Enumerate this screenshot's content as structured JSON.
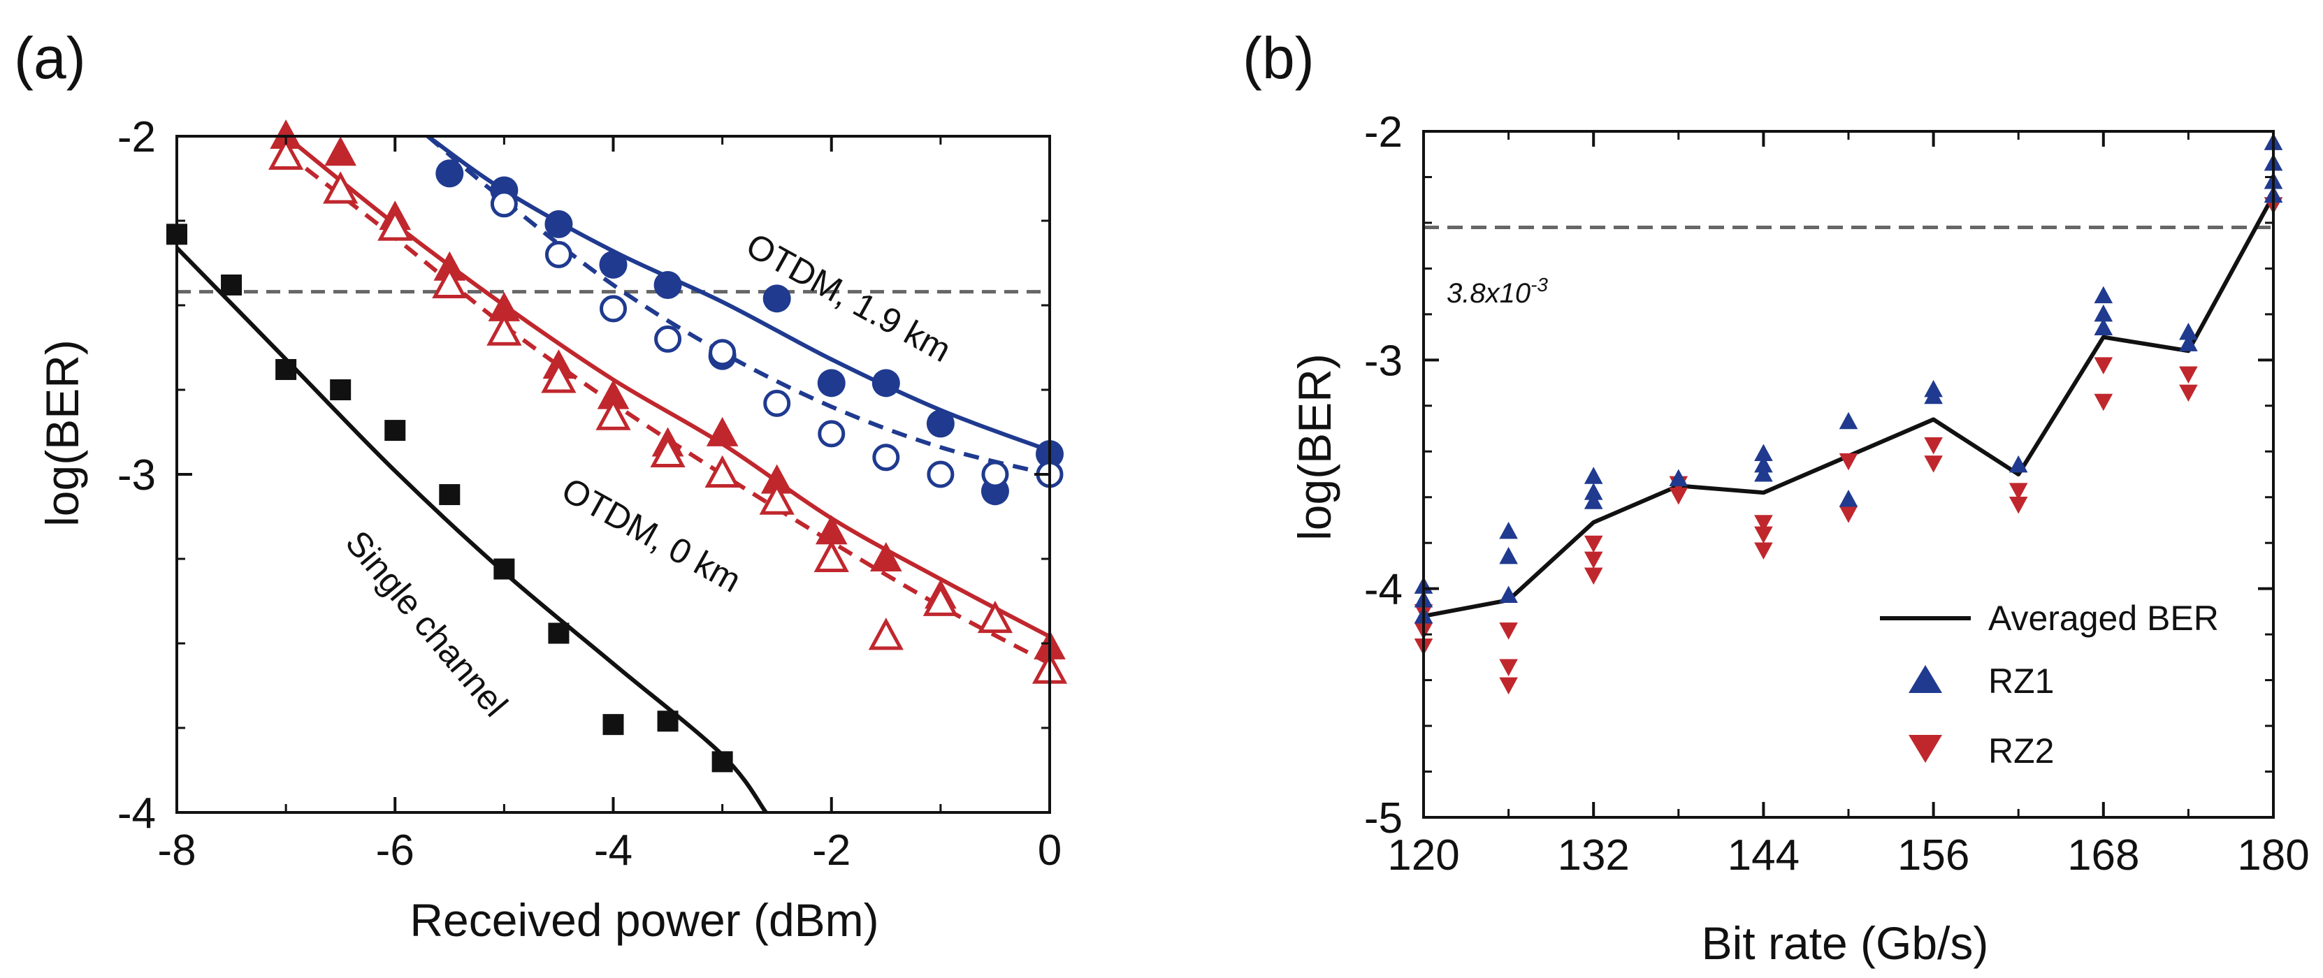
{
  "chart_data": [
    {
      "panel_label": "(a)",
      "type": "scatter",
      "xlabel": "Received power (dBm)",
      "ylabel": "log(BER)",
      "xlim": [
        -8,
        0
      ],
      "ylim": [
        -4,
        -2
      ],
      "xticks": [
        -8,
        -6,
        -4,
        -2,
        0
      ],
      "yticks": [
        -4,
        -3,
        -2
      ],
      "xtick_labels": [
        "-8",
        "-6",
        "-4",
        "-2",
        "0"
      ],
      "ytick_labels": [
        "-4",
        "-3",
        "-2"
      ],
      "threshold_logber": -2.46,
      "colors": {
        "red": "#c0272d",
        "blue": "#1f3a8f",
        "black": "#111111"
      },
      "annotations": [
        "OTDM, 1.9 km",
        "OTDM, 0 km",
        "Single channel"
      ],
      "series": [
        {
          "name": "Single channel",
          "marker": "filled-square",
          "color": "#111111",
          "x": [
            -8,
            -7.5,
            -7,
            -6.5,
            -6,
            -5.5,
            -5,
            -4.5,
            -4,
            -3.5,
            -3
          ],
          "y": [
            -2.29,
            -2.44,
            -2.69,
            -2.75,
            -2.87,
            -3.06,
            -3.28,
            -3.47,
            -3.74,
            -3.73,
            -3.85
          ],
          "fit": {
            "x": [
              -8,
              -7,
              -6,
              -5,
              -4,
              -3,
              -2.6
            ],
            "y": [
              -2.33,
              -2.66,
              -2.99,
              -3.29,
              -3.56,
              -3.83,
              -4.0
            ]
          }
        },
        {
          "name": "OTDM, 0 km (filled)",
          "marker": "filled-triangle-up",
          "color": "#c0272d",
          "x": [
            -7,
            -6.5,
            -6,
            -5.5,
            -5,
            -4.5,
            -4,
            -3.5,
            -3,
            -2.5,
            -2,
            -1.5,
            -1,
            -0.5,
            0
          ],
          "y": [
            -2.0,
            -2.05,
            -2.24,
            -2.39,
            -2.51,
            -2.68,
            -2.77,
            -2.91,
            -2.88,
            -3.02,
            -3.17,
            -3.25,
            -3.36,
            -3.43,
            -3.51
          ],
          "fit": {
            "x": [
              -7,
              -6,
              -5,
              -4,
              -3,
              -2,
              -1,
              0
            ],
            "y": [
              -2.0,
              -2.26,
              -2.5,
              -2.72,
              -2.91,
              -3.13,
              -3.31,
              -3.48
            ]
          }
        },
        {
          "name": "OTDM, 0 km (open)",
          "marker": "open-triangle-up",
          "color": "#c0272d",
          "x": [
            -7,
            -6.5,
            -6,
            -5.5,
            -5,
            -4.5,
            -4,
            -3.5,
            -3,
            -2.5,
            -2,
            -1.5,
            -1,
            -0.5,
            0
          ],
          "y": [
            -2.06,
            -2.16,
            -2.27,
            -2.44,
            -2.58,
            -2.72,
            -2.83,
            -2.94,
            -3.0,
            -3.08,
            -3.25,
            -3.48,
            -3.38,
            -3.43,
            -3.58
          ],
          "fit": {
            "x": [
              -7,
              -6,
              -5,
              -4,
              -3,
              -2,
              -1,
              0
            ],
            "y": [
              -2.05,
              -2.3,
              -2.56,
              -2.79,
              -3.0,
              -3.2,
              -3.39,
              -3.56
            ]
          }
        },
        {
          "name": "OTDM, 1.9 km (filled)",
          "marker": "filled-circle",
          "color": "#1f3a8f",
          "x": [
            -5.5,
            -5,
            -4.5,
            -4,
            -3.5,
            -3,
            -2.5,
            -2,
            -1.5,
            -1,
            -0.5,
            0
          ],
          "y": [
            -2.11,
            -2.16,
            -2.26,
            -2.38,
            -2.44,
            -2.65,
            -2.48,
            -2.73,
            -2.73,
            -2.85,
            -3.05,
            -2.94
          ],
          "fit": {
            "x": [
              -5.7,
              -5,
              -4,
              -3,
              -2,
              -1,
              0
            ],
            "y": [
              -2.0,
              -2.16,
              -2.34,
              -2.49,
              -2.66,
              -2.81,
              -2.93
            ]
          }
        },
        {
          "name": "OTDM, 1.9 km (open)",
          "marker": "open-circle",
          "color": "#1f3a8f",
          "x": [
            -5,
            -4.5,
            -4,
            -3.5,
            -3,
            -2.5,
            -2,
            -1.5,
            -1,
            -0.5,
            0
          ],
          "y": [
            -2.2,
            -2.35,
            -2.51,
            -2.6,
            -2.64,
            -2.79,
            -2.88,
            -2.95,
            -3.0,
            -3.0,
            -3.0
          ],
          "fit": {
            "x": [
              -5.7,
              -5,
              -4,
              -3,
              -2,
              -1,
              0
            ],
            "y": [
              -2.0,
              -2.19,
              -2.44,
              -2.64,
              -2.8,
              -2.92,
              -3.0
            ]
          }
        }
      ]
    },
    {
      "panel_label": "(b)",
      "type": "scatter",
      "xlabel": "Bit rate (Gb/s)",
      "ylabel": "log(BER)",
      "xlim": [
        120,
        180
      ],
      "ylim": [
        -5,
        -2
      ],
      "xticks": [
        120,
        132,
        144,
        156,
        168,
        180
      ],
      "yticks": [
        -5,
        -4,
        -3,
        -2
      ],
      "xtick_labels": [
        "120",
        "132",
        "144",
        "156",
        "168",
        "180"
      ],
      "ytick_labels": [
        "-5",
        "-4",
        "-3",
        "-2"
      ],
      "threshold_logber": -2.42,
      "threshold_label": {
        "base": "3.8x10",
        "exponent": "-3"
      },
      "legend": [
        "Averaged BER",
        "RZ1",
        "RZ2"
      ],
      "colors": {
        "rz1": "#1f3a8f",
        "rz2": "#c0272d",
        "avg": "#111111"
      },
      "averaged_ber": {
        "x": [
          120,
          126,
          132,
          138,
          144,
          150,
          156,
          162,
          168,
          174,
          180
        ],
        "y": [
          -4.12,
          -4.05,
          -3.71,
          -3.55,
          -3.58,
          -3.42,
          -3.26,
          -3.5,
          -2.9,
          -2.96,
          -2.28
        ]
      },
      "rz1": {
        "x": [
          120,
          120,
          120,
          126,
          126,
          126,
          132,
          132,
          132,
          138,
          144,
          144,
          144,
          150,
          150,
          156,
          156,
          162,
          168,
          168,
          168,
          174,
          174,
          180,
          180,
          180,
          180
        ],
        "y": [
          -3.99,
          -4.05,
          -4.12,
          -3.75,
          -3.86,
          -4.03,
          -3.51,
          -3.58,
          -3.62,
          -3.52,
          -3.41,
          -3.46,
          -3.5,
          -3.27,
          -3.61,
          -3.13,
          -3.16,
          -3.46,
          -2.72,
          -2.8,
          -2.86,
          -2.88,
          -2.93,
          -2.05,
          -2.14,
          -2.22,
          -2.28
        ]
      },
      "rz2": {
        "x": [
          120,
          120,
          120,
          126,
          126,
          126,
          132,
          132,
          132,
          138,
          138,
          144,
          144,
          144,
          150,
          150,
          156,
          156,
          162,
          162,
          168,
          168,
          174,
          174,
          180
        ],
        "y": [
          -4.1,
          -4.18,
          -4.25,
          -4.18,
          -4.34,
          -4.42,
          -3.8,
          -3.87,
          -3.94,
          -3.54,
          -3.59,
          -3.71,
          -3.76,
          -3.83,
          -3.44,
          -3.67,
          -3.37,
          -3.45,
          -3.57,
          -3.63,
          -3.02,
          -3.18,
          -3.06,
          -3.14,
          -2.32
        ]
      }
    }
  ]
}
